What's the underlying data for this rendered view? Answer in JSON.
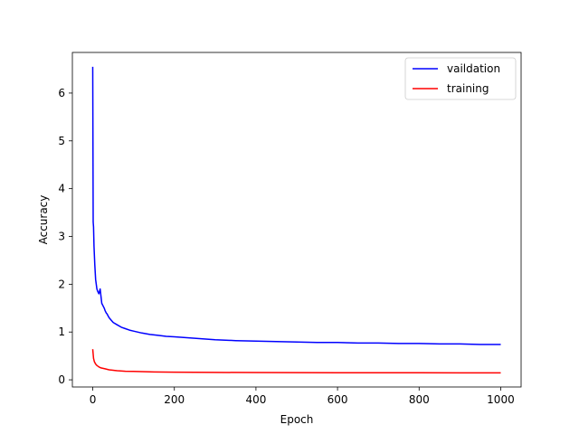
{
  "chart_data": {
    "type": "line",
    "xlabel": "Epoch",
    "ylabel": "Accuracy",
    "xlim": [
      -50,
      1050
    ],
    "ylim": [
      -0.15,
      6.85
    ],
    "xticks": [
      0,
      200,
      400,
      600,
      800,
      1000
    ],
    "yticks": [
      0,
      1,
      2,
      3,
      4,
      5,
      6
    ],
    "grid": false,
    "legend_position": "top-right",
    "series": [
      {
        "name": "vaildation",
        "color": "#0000ff",
        "x": [
          0,
          1,
          2,
          3,
          5,
          7,
          10,
          12,
          15,
          18,
          20,
          22,
          25,
          28,
          30,
          33,
          35,
          38,
          40,
          45,
          50,
          60,
          70,
          80,
          90,
          100,
          120,
          140,
          160,
          180,
          200,
          250,
          300,
          350,
          400,
          450,
          500,
          550,
          600,
          650,
          700,
          750,
          800,
          850,
          900,
          950,
          1000
        ],
        "y": [
          6.55,
          3.3,
          3.2,
          2.8,
          2.4,
          2.1,
          1.9,
          1.85,
          1.8,
          1.9,
          1.75,
          1.6,
          1.55,
          1.5,
          1.45,
          1.4,
          1.38,
          1.33,
          1.3,
          1.25,
          1.2,
          1.15,
          1.1,
          1.07,
          1.04,
          1.02,
          0.98,
          0.95,
          0.93,
          0.91,
          0.9,
          0.87,
          0.84,
          0.82,
          0.81,
          0.8,
          0.79,
          0.78,
          0.78,
          0.77,
          0.77,
          0.76,
          0.76,
          0.75,
          0.75,
          0.74,
          0.74
        ]
      },
      {
        "name": "training",
        "color": "#ff0000",
        "x": [
          0,
          2,
          4,
          7,
          10,
          15,
          20,
          30,
          40,
          50,
          60,
          80,
          100,
          150,
          200,
          250,
          300,
          400,
          500,
          600,
          700,
          800,
          900,
          1000
        ],
        "y": [
          0.64,
          0.45,
          0.38,
          0.33,
          0.3,
          0.27,
          0.25,
          0.23,
          0.21,
          0.2,
          0.19,
          0.18,
          0.175,
          0.165,
          0.16,
          0.157,
          0.155,
          0.152,
          0.15,
          0.149,
          0.148,
          0.147,
          0.146,
          0.145
        ]
      }
    ]
  }
}
